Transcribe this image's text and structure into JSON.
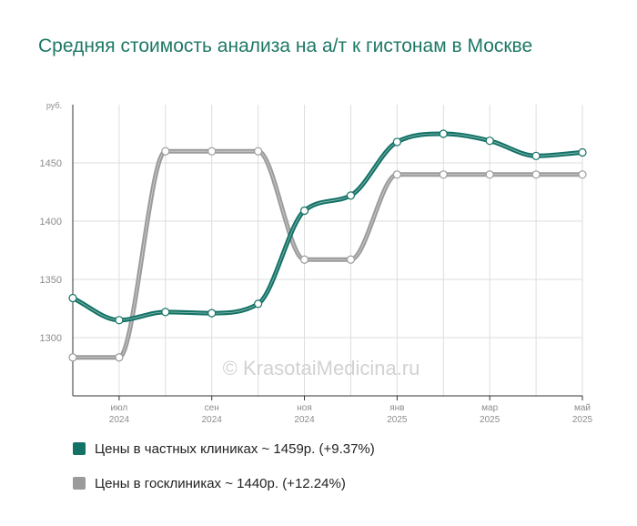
{
  "title": "Средняя стоимость анализа на а/т к гистонам в Москве",
  "watermark": "© KrasotaiMedicina.ru",
  "chart_data": {
    "type": "line",
    "title": "Средняя стоимость анализа на а/т к гистонам в Москве",
    "y_unit": "руб.",
    "ylim": [
      1250,
      1500
    ],
    "y_ticks": [
      1300,
      1350,
      1400,
      1450
    ],
    "grid": true,
    "legend_position": "bottom",
    "x": [
      "2024-06",
      "2024-07",
      "2024-08",
      "2024-09",
      "2024-10",
      "2024-11",
      "2024-12",
      "2025-01",
      "2025-02",
      "2025-03",
      "2025-04",
      "2025-05"
    ],
    "x_tick_labels": [
      {
        "x": "2024-07",
        "month": "июл",
        "year": "2024"
      },
      {
        "x": "2024-09",
        "month": "сен",
        "year": "2024"
      },
      {
        "x": "2024-11",
        "month": "ноя",
        "year": "2024"
      },
      {
        "x": "2025-01",
        "month": "янв",
        "year": "2025"
      },
      {
        "x": "2025-03",
        "month": "мар",
        "year": "2025"
      },
      {
        "x": "2025-05",
        "month": "май",
        "year": "2025"
      }
    ],
    "series": [
      {
        "name": "Цены в частных клиниках ~ 1459р. (+9.37%)",
        "color": "#137266",
        "values": [
          1334,
          1315,
          1322,
          1321,
          1329,
          1409,
          1422,
          1468,
          1475,
          1469,
          1456,
          1459
        ]
      },
      {
        "name": "Цены в госклиниках ~ 1440р. (+12.24%)",
        "color": "#9b9b9b",
        "values": [
          1283,
          1283,
          1460,
          1460,
          1460,
          1367,
          1367,
          1440,
          1440,
          1440,
          1440,
          1440
        ]
      }
    ]
  }
}
